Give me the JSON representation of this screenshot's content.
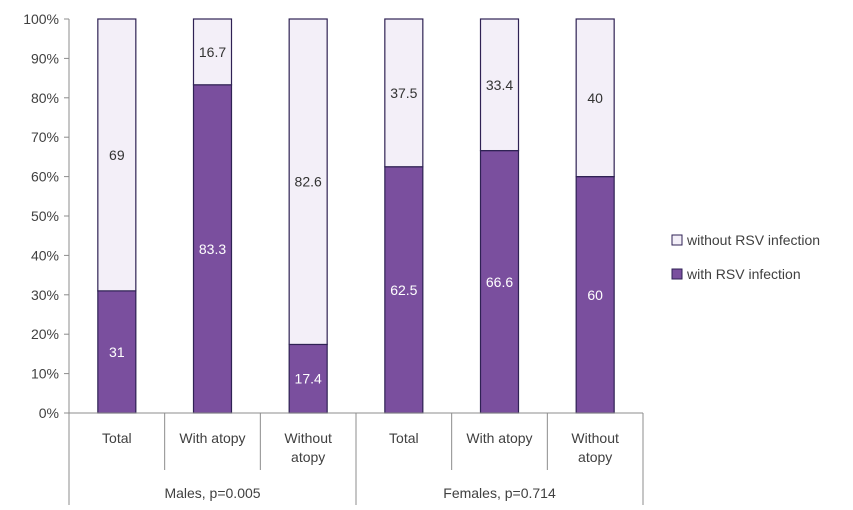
{
  "chart_data": {
    "type": "bar",
    "stacked": true,
    "percent_stacked": true,
    "categories": [
      "Total",
      "With atopy",
      "Without atopy",
      "Total",
      "With atopy",
      "Without atopy"
    ],
    "category_lines": [
      [
        "Total"
      ],
      [
        "With atopy"
      ],
      [
        "Without",
        "atopy"
      ],
      [
        "Total"
      ],
      [
        "With atopy"
      ],
      [
        "Without",
        "atopy"
      ]
    ],
    "groups": [
      {
        "label": "Males, p=0.005",
        "categories": [
          0,
          1,
          2
        ]
      },
      {
        "label": "Females, p=0.714",
        "categories": [
          3,
          4,
          5
        ]
      }
    ],
    "series": [
      {
        "name": "with RSV infection",
        "values": [
          31,
          83.3,
          17.4,
          62.5,
          66.6,
          60
        ],
        "color": "#7a4f9e",
        "label_color": "#ffffff"
      },
      {
        "name": "without RSV infection",
        "values": [
          69,
          16.7,
          82.6,
          37.5,
          33.4,
          40
        ],
        "color": "#f3eff8",
        "label_color": "#333333"
      }
    ],
    "value_labels": [
      [
        "31",
        "83.3",
        "17.4",
        "62.5",
        "66.6",
        "60"
      ],
      [
        "69",
        "16.7",
        "82.6",
        "37.5",
        "33.4",
        "40"
      ]
    ],
    "ylim": [
      0,
      100
    ],
    "y_ticks": [
      "0%",
      "10%",
      "20%",
      "30%",
      "40%",
      "50%",
      "60%",
      "70%",
      "80%",
      "90%",
      "100%"
    ],
    "xlabel": "",
    "ylabel": "",
    "title": "",
    "grid": false,
    "legend_position": "right",
    "legend_order": [
      "without RSV infection",
      "with RSV infection"
    ],
    "bar_outline_color": "#2f2254"
  }
}
